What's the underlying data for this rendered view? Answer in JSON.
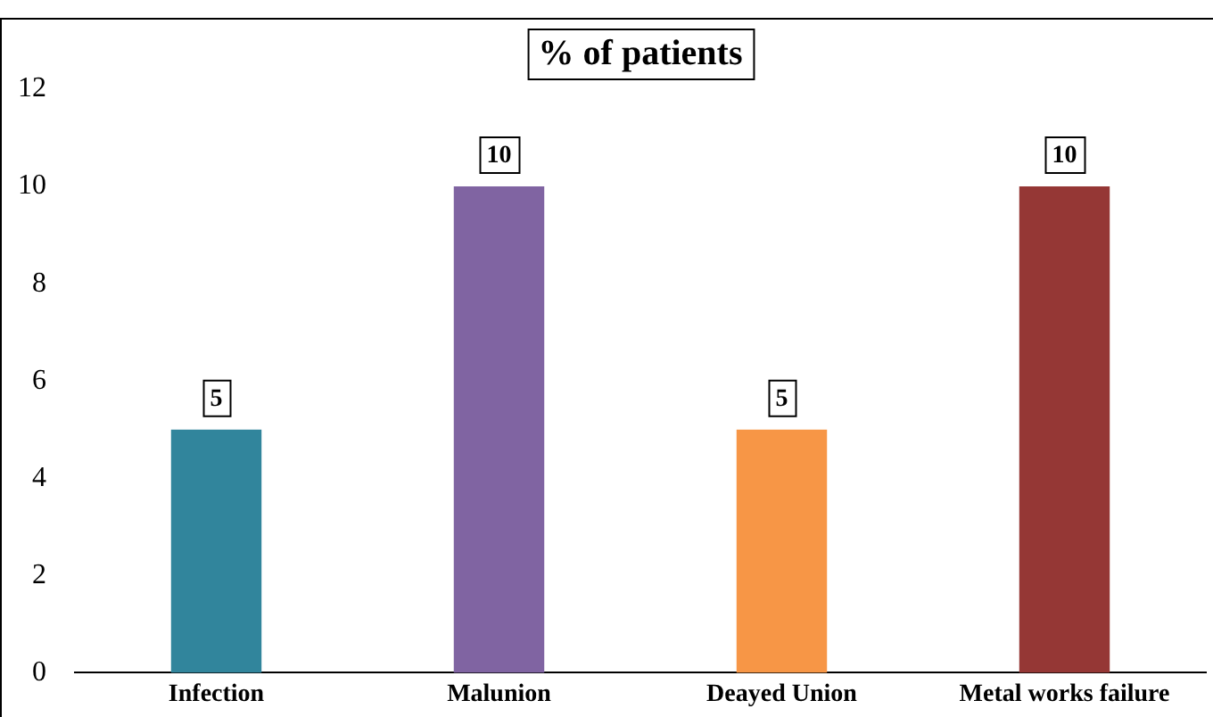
{
  "chart_data": {
    "type": "bar",
    "title": "% of patients",
    "categories": [
      "Infection",
      "Malunion",
      "Deayed Union",
      "Metal works failure"
    ],
    "values": [
      5,
      10,
      5,
      10
    ],
    "colors": [
      "#31859c",
      "#8064a2",
      "#f79646",
      "#953735"
    ],
    "ylim": [
      0,
      12
    ],
    "yticks": [
      0,
      2,
      4,
      6,
      8,
      10,
      12
    ],
    "grid": false,
    "legend": false,
    "data_labels": true
  }
}
